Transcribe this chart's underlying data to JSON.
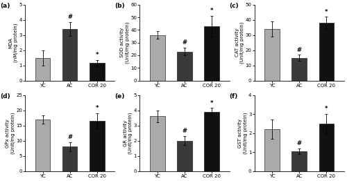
{
  "subplots": [
    {
      "label": "(a)",
      "ylabel": "MDA\n(nM/mg protein)",
      "ylim": [
        0,
        5
      ],
      "yticks": [
        0,
        1,
        2,
        3,
        4,
        5
      ],
      "values": [
        1.5,
        3.4,
        1.15
      ],
      "errors": [
        0.5,
        0.45,
        0.2
      ],
      "annotations": [
        "",
        "#",
        "*"
      ],
      "categories": [
        "YC",
        "AC",
        "COR 20"
      ],
      "colors": [
        "#aaaaaa",
        "#3a3a3a",
        "#111111"
      ]
    },
    {
      "label": "(b)",
      "ylabel": "SOD activity\n(Unit/mg protein)",
      "ylim": [
        0,
        60
      ],
      "yticks": [
        0,
        10,
        20,
        30,
        40,
        50,
        60
      ],
      "values": [
        36,
        23,
        43
      ],
      "errors": [
        3,
        3,
        8
      ],
      "annotations": [
        "",
        "#",
        "*"
      ],
      "categories": [
        "YC",
        "AC",
        "COR 20"
      ],
      "colors": [
        "#aaaaaa",
        "#3a3a3a",
        "#111111"
      ]
    },
    {
      "label": "(c)",
      "ylabel": "CAT activity\n(Unit/mg protein)",
      "ylim": [
        0,
        50
      ],
      "yticks": [
        0,
        10,
        20,
        30,
        40,
        50
      ],
      "values": [
        34,
        15,
        38
      ],
      "errors": [
        5,
        2,
        4
      ],
      "annotations": [
        "",
        "#",
        "*"
      ],
      "categories": [
        "YC",
        "AC",
        "COR 20"
      ],
      "colors": [
        "#aaaaaa",
        "#3a3a3a",
        "#111111"
      ]
    },
    {
      "label": "(d)",
      "ylabel": "GPx activity\n(Unit/mg protein)",
      "ylim": [
        0,
        25
      ],
      "yticks": [
        0,
        5,
        10,
        15,
        20,
        25
      ],
      "values": [
        17,
        8,
        16.5
      ],
      "errors": [
        1.3,
        1.5,
        2.5
      ],
      "annotations": [
        "",
        "#",
        "*"
      ],
      "categories": [
        "YC",
        "AC",
        "COR 20"
      ],
      "colors": [
        "#aaaaaa",
        "#3a3a3a",
        "#111111"
      ]
    },
    {
      "label": "(e)",
      "ylabel": "GR activity\n(Unit/mg protein)",
      "ylim": [
        0,
        5
      ],
      "yticks": [
        0,
        1,
        2,
        3,
        4,
        5
      ],
      "values": [
        3.6,
        2.0,
        3.9
      ],
      "errors": [
        0.4,
        0.3,
        0.25
      ],
      "annotations": [
        "",
        "#",
        "*"
      ],
      "categories": [
        "YC",
        "AC",
        "COR 20"
      ],
      "colors": [
        "#aaaaaa",
        "#3a3a3a",
        "#111111"
      ]
    },
    {
      "label": "(f)",
      "ylabel": "GST activity\n(Unit/mg protein)",
      "ylim": [
        0,
        4
      ],
      "yticks": [
        0,
        1,
        2,
        3,
        4
      ],
      "values": [
        2.2,
        1.05,
        2.5
      ],
      "errors": [
        0.5,
        0.15,
        0.5
      ],
      "annotations": [
        "",
        "#",
        "*"
      ],
      "categories": [
        "YC",
        "AC",
        "COR 20"
      ],
      "colors": [
        "#aaaaaa",
        "#3a3a3a",
        "#111111"
      ]
    }
  ],
  "background_color": "#ffffff",
  "bar_width": 0.55,
  "label_fontsize": 5.0,
  "tick_fontsize": 5.0,
  "annotation_fontsize": 6.0,
  "panel_label_fontsize": 6.5
}
